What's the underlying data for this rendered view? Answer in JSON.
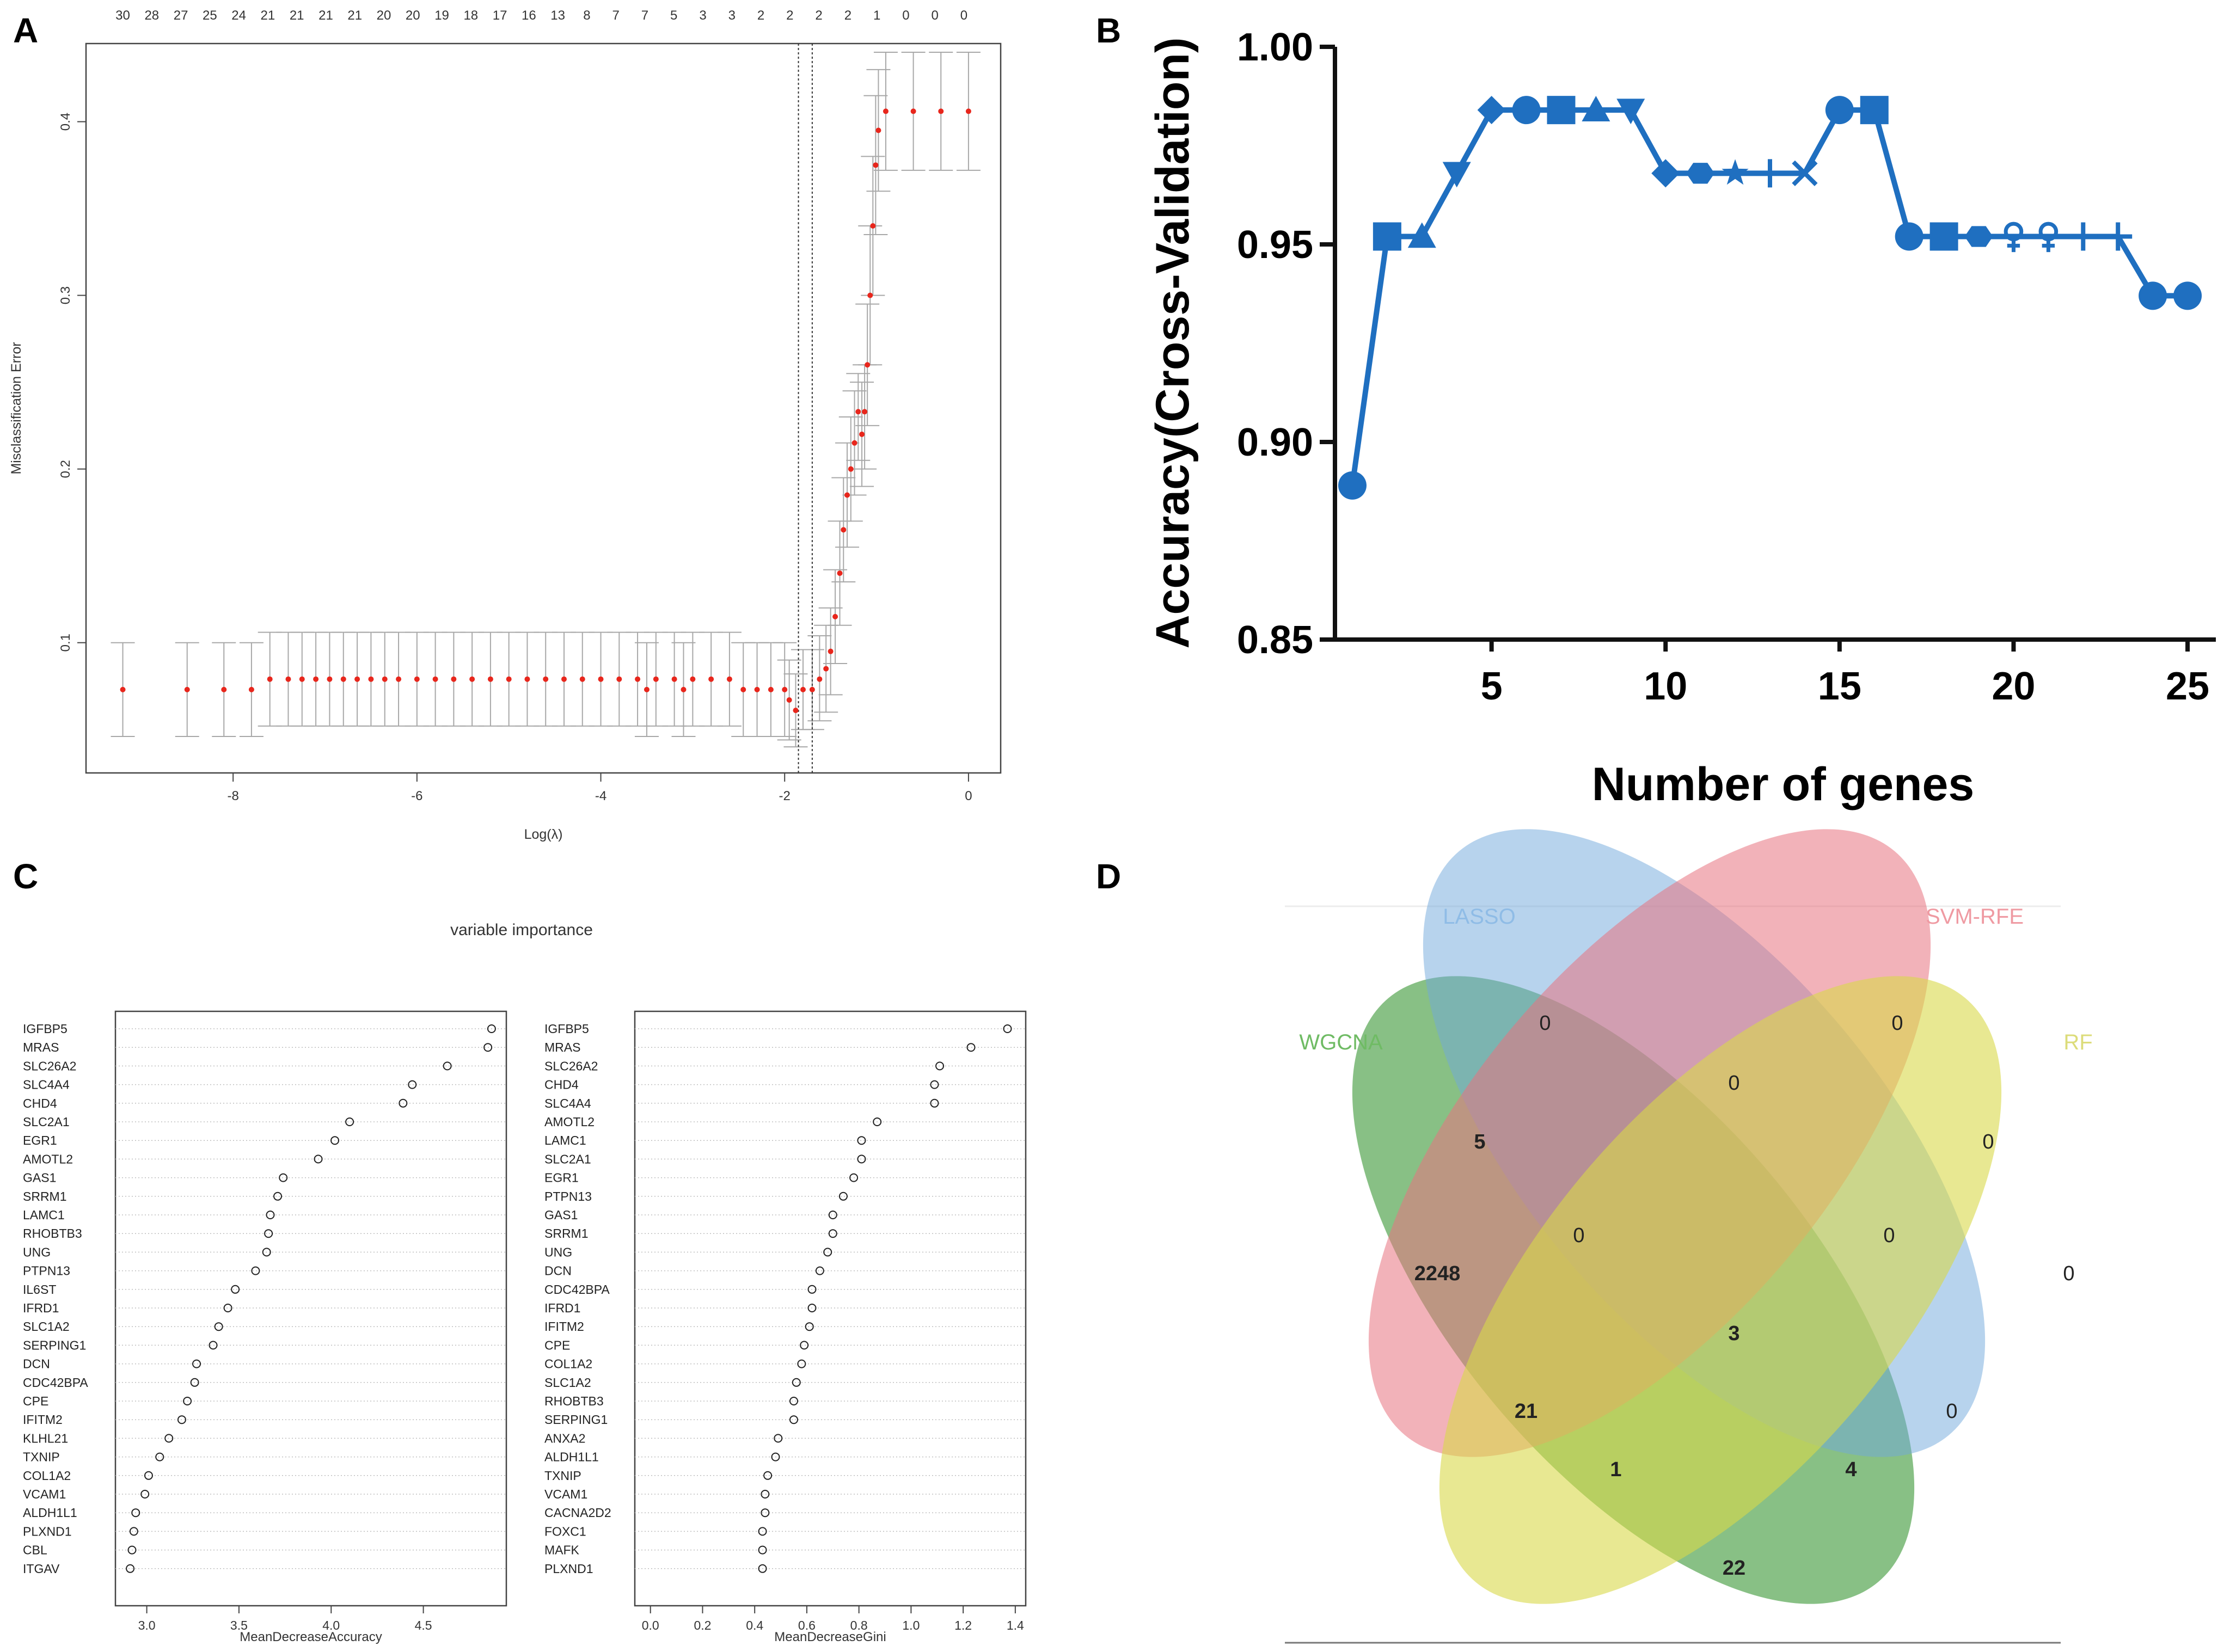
{
  "panel_labels": [
    "A",
    "B",
    "C",
    "D"
  ],
  "chart_data": [
    {
      "panel": "A",
      "type": "scatter",
      "title": "",
      "xlabel": "Log(λ)",
      "ylabel": "Misclassification Error",
      "xlim": [
        -9.6,
        0.35
      ],
      "ylim": [
        0.025,
        0.445
      ],
      "xticks": [
        -8,
        -6,
        -4,
        -2,
        0
      ],
      "xtick_labels": [
        "-8",
        "-6",
        "-4",
        "-2",
        "0"
      ],
      "yticks": [
        0.1,
        0.2,
        0.3,
        0.4
      ],
      "ytick_labels": [
        "0.1",
        "0.2",
        "0.3",
        "0.4"
      ],
      "top_axis_labels": [
        "30",
        "28",
        "27",
        "25",
        "24",
        "21",
        "21",
        "21",
        "21",
        "20",
        "20",
        "19",
        "18",
        "17",
        "16",
        "13",
        "8",
        "7",
        "7",
        "5",
        "3",
        "3",
        "2",
        "2",
        "2",
        "2",
        "1",
        "0",
        "0",
        "0"
      ],
      "vlines_x": [
        -1.85,
        -1.7
      ],
      "colors": {
        "point": "#e8261c",
        "errorbar": "#a8a8a8"
      },
      "points": [
        {
          "x": -9.2,
          "y": 0.073,
          "lo": 0.046,
          "hi": 0.1
        },
        {
          "x": -8.5,
          "y": 0.073,
          "lo": 0.046,
          "hi": 0.1
        },
        {
          "x": -8.1,
          "y": 0.073,
          "lo": 0.046,
          "hi": 0.1
        },
        {
          "x": -7.8,
          "y": 0.073,
          "lo": 0.046,
          "hi": 0.1
        },
        {
          "x": -7.6,
          "y": 0.079,
          "lo": 0.052,
          "hi": 0.106
        },
        {
          "x": -7.4,
          "y": 0.079,
          "lo": 0.052,
          "hi": 0.106
        },
        {
          "x": -7.25,
          "y": 0.079,
          "lo": 0.052,
          "hi": 0.106
        },
        {
          "x": -7.1,
          "y": 0.079,
          "lo": 0.052,
          "hi": 0.106
        },
        {
          "x": -6.95,
          "y": 0.079,
          "lo": 0.052,
          "hi": 0.106
        },
        {
          "x": -6.8,
          "y": 0.079,
          "lo": 0.052,
          "hi": 0.106
        },
        {
          "x": -6.65,
          "y": 0.079,
          "lo": 0.052,
          "hi": 0.106
        },
        {
          "x": -6.5,
          "y": 0.079,
          "lo": 0.052,
          "hi": 0.106
        },
        {
          "x": -6.35,
          "y": 0.079,
          "lo": 0.052,
          "hi": 0.106
        },
        {
          "x": -6.2,
          "y": 0.079,
          "lo": 0.052,
          "hi": 0.106
        },
        {
          "x": -6.0,
          "y": 0.079,
          "lo": 0.052,
          "hi": 0.106
        },
        {
          "x": -5.8,
          "y": 0.079,
          "lo": 0.052,
          "hi": 0.106
        },
        {
          "x": -5.6,
          "y": 0.079,
          "lo": 0.052,
          "hi": 0.106
        },
        {
          "x": -5.4,
          "y": 0.079,
          "lo": 0.052,
          "hi": 0.106
        },
        {
          "x": -5.2,
          "y": 0.079,
          "lo": 0.052,
          "hi": 0.106
        },
        {
          "x": -5.0,
          "y": 0.079,
          "lo": 0.052,
          "hi": 0.106
        },
        {
          "x": -4.8,
          "y": 0.079,
          "lo": 0.052,
          "hi": 0.106
        },
        {
          "x": -4.6,
          "y": 0.079,
          "lo": 0.052,
          "hi": 0.106
        },
        {
          "x": -4.4,
          "y": 0.079,
          "lo": 0.052,
          "hi": 0.106
        },
        {
          "x": -4.2,
          "y": 0.079,
          "lo": 0.052,
          "hi": 0.106
        },
        {
          "x": -4.0,
          "y": 0.079,
          "lo": 0.052,
          "hi": 0.106
        },
        {
          "x": -3.8,
          "y": 0.079,
          "lo": 0.052,
          "hi": 0.106
        },
        {
          "x": -3.6,
          "y": 0.079,
          "lo": 0.052,
          "hi": 0.106
        },
        {
          "x": -3.5,
          "y": 0.073,
          "lo": 0.046,
          "hi": 0.1
        },
        {
          "x": -3.4,
          "y": 0.079,
          "lo": 0.052,
          "hi": 0.106
        },
        {
          "x": -3.2,
          "y": 0.079,
          "lo": 0.052,
          "hi": 0.106
        },
        {
          "x": -3.1,
          "y": 0.073,
          "lo": 0.046,
          "hi": 0.1
        },
        {
          "x": -3.0,
          "y": 0.079,
          "lo": 0.052,
          "hi": 0.106
        },
        {
          "x": -2.8,
          "y": 0.079,
          "lo": 0.052,
          "hi": 0.106
        },
        {
          "x": -2.6,
          "y": 0.079,
          "lo": 0.052,
          "hi": 0.106
        },
        {
          "x": -2.45,
          "y": 0.073,
          "lo": 0.046,
          "hi": 0.1
        },
        {
          "x": -2.3,
          "y": 0.073,
          "lo": 0.046,
          "hi": 0.1
        },
        {
          "x": -2.15,
          "y": 0.073,
          "lo": 0.046,
          "hi": 0.1
        },
        {
          "x": -2.0,
          "y": 0.073,
          "lo": 0.046,
          "hi": 0.1
        },
        {
          "x": -1.95,
          "y": 0.067,
          "lo": 0.044,
          "hi": 0.09
        },
        {
          "x": -1.88,
          "y": 0.061,
          "lo": 0.04,
          "hi": 0.082
        },
        {
          "x": -1.8,
          "y": 0.073,
          "lo": 0.05,
          "hi": 0.096
        },
        {
          "x": -1.7,
          "y": 0.073,
          "lo": 0.05,
          "hi": 0.096
        },
        {
          "x": -1.62,
          "y": 0.079,
          "lo": 0.055,
          "hi": 0.104
        },
        {
          "x": -1.55,
          "y": 0.085,
          "lo": 0.06,
          "hi": 0.11
        },
        {
          "x": -1.5,
          "y": 0.095,
          "lo": 0.07,
          "hi": 0.12
        },
        {
          "x": -1.45,
          "y": 0.115,
          "lo": 0.088,
          "hi": 0.142
        },
        {
          "x": -1.4,
          "y": 0.14,
          "lo": 0.11,
          "hi": 0.17
        },
        {
          "x": -1.36,
          "y": 0.165,
          "lo": 0.135,
          "hi": 0.195
        },
        {
          "x": -1.32,
          "y": 0.185,
          "lo": 0.155,
          "hi": 0.215
        },
        {
          "x": -1.28,
          "y": 0.2,
          "lo": 0.17,
          "hi": 0.23
        },
        {
          "x": -1.24,
          "y": 0.215,
          "lo": 0.185,
          "hi": 0.245
        },
        {
          "x": -1.2,
          "y": 0.233,
          "lo": 0.205,
          "hi": 0.255
        },
        {
          "x": -1.16,
          "y": 0.22,
          "lo": 0.19,
          "hi": 0.25
        },
        {
          "x": -1.13,
          "y": 0.233,
          "lo": 0.2,
          "hi": 0.26
        },
        {
          "x": -1.1,
          "y": 0.26,
          "lo": 0.225,
          "hi": 0.295
        },
        {
          "x": -1.07,
          "y": 0.3,
          "lo": 0.26,
          "hi": 0.34
        },
        {
          "x": -1.04,
          "y": 0.34,
          "lo": 0.3,
          "hi": 0.38
        },
        {
          "x": -1.01,
          "y": 0.375,
          "lo": 0.335,
          "hi": 0.415
        },
        {
          "x": -0.98,
          "y": 0.395,
          "lo": 0.36,
          "hi": 0.43
        },
        {
          "x": -0.9,
          "y": 0.406,
          "lo": 0.372,
          "hi": 0.44
        },
        {
          "x": -0.6,
          "y": 0.406,
          "lo": 0.372,
          "hi": 0.44
        },
        {
          "x": -0.3,
          "y": 0.406,
          "lo": 0.372,
          "hi": 0.44
        },
        {
          "x": 0.0,
          "y": 0.406,
          "lo": 0.372,
          "hi": 0.44
        }
      ]
    },
    {
      "panel": "B",
      "type": "line",
      "title": "",
      "xlabel": "Number of genes",
      "ylabel": "Accuracy(Cross-Validation)",
      "xlim": [
        0.5,
        25.5
      ],
      "ylim": [
        0.85,
        1.0
      ],
      "xticks": [
        5,
        10,
        15,
        20,
        25
      ],
      "xtick_labels": [
        "5",
        "10",
        "15",
        "20",
        "25"
      ],
      "yticks": [
        0.85,
        0.9,
        0.95,
        1.0
      ],
      "ytick_labels": [
        "0.85",
        "0.90",
        "0.95",
        "1.00"
      ],
      "color": "#1f6fc0",
      "x": [
        1,
        2,
        3,
        4,
        5,
        6,
        7,
        8,
        9,
        10,
        11,
        12,
        13,
        14,
        15,
        16,
        17,
        18,
        19,
        20,
        21,
        22,
        23,
        24,
        25
      ],
      "y": [
        0.889,
        0.952,
        0.952,
        0.968,
        0.984,
        0.984,
        0.984,
        0.984,
        0.984,
        0.968,
        0.968,
        0.968,
        0.968,
        0.968,
        0.984,
        0.984,
        0.952,
        0.952,
        0.952,
        0.952,
        0.952,
        0.952,
        0.952,
        0.937,
        0.937
      ],
      "markers": [
        "circle",
        "square",
        "triangle",
        "triangle-down",
        "diamond",
        "circle",
        "square",
        "triangle",
        "triangle-down",
        "diamond",
        "hexagon",
        "star",
        "plus",
        "x",
        "circle",
        "square",
        "circle",
        "square",
        "hexagon",
        "female",
        "female",
        "plus",
        "plus",
        "circle",
        "circle"
      ]
    },
    {
      "panel": "C",
      "type": "scatter",
      "title": "variable importance",
      "subplots": [
        {
          "xlabel": "MeanDecreaseAccuracy",
          "xlim": [
            2.83,
            4.95
          ],
          "xticks": [
            3.0,
            3.5,
            4.0,
            4.5
          ],
          "xtick_labels": [
            "3.0",
            "3.5",
            "4.0",
            "4.5"
          ],
          "genes": [
            "IGFBP5",
            "MRAS",
            "SLC26A2",
            "SLC4A4",
            "CHD4",
            "SLC2A1",
            "EGR1",
            "AMOTL2",
            "GAS1",
            "SRRM1",
            "LAMC1",
            "RHOBTB3",
            "UNG",
            "PTPN13",
            "IL6ST",
            "IFRD1",
            "SLC1A2",
            "SERPING1",
            "DCN",
            "CDC42BPA",
            "CPE",
            "IFITM2",
            "KLHL21",
            "TXNIP",
            "COL1A2",
            "VCAM1",
            "ALDH1L1",
            "PLXND1",
            "CBL",
            "ITGAV"
          ],
          "values": [
            4.87,
            4.85,
            4.63,
            4.44,
            4.39,
            4.1,
            4.02,
            3.93,
            3.74,
            3.71,
            3.67,
            3.66,
            3.65,
            3.59,
            3.48,
            3.44,
            3.39,
            3.36,
            3.27,
            3.26,
            3.22,
            3.19,
            3.12,
            3.07,
            3.01,
            2.99,
            2.94,
            2.93,
            2.92,
            2.91
          ]
        },
        {
          "xlabel": "MeanDecreaseGini",
          "xlim": [
            -0.06,
            1.44
          ],
          "xticks": [
            0.0,
            0.2,
            0.4,
            0.6,
            0.8,
            1.0,
            1.2,
            1.4
          ],
          "xtick_labels": [
            "0.0",
            "0.2",
            "0.4",
            "0.6",
            "0.8",
            "1.0",
            "1.2",
            "1.4"
          ],
          "genes": [
            "IGFBP5",
            "MRAS",
            "SLC26A2",
            "CHD4",
            "SLC4A4",
            "AMOTL2",
            "LAMC1",
            "SLC2A1",
            "EGR1",
            "PTPN13",
            "GAS1",
            "SRRM1",
            "UNG",
            "DCN",
            "CDC42BPA",
            "IFRD1",
            "IFITM2",
            "CPE",
            "COL1A2",
            "SLC1A2",
            "RHOBTB3",
            "SERPING1",
            "ANXA2",
            "ALDH1L1",
            "TXNIP",
            "VCAM1",
            "CACNA2D2",
            "FOXC1",
            "MAFK",
            "PLXND1"
          ],
          "values": [
            1.37,
            1.23,
            1.11,
            1.09,
            1.09,
            0.87,
            0.81,
            0.81,
            0.78,
            0.74,
            0.7,
            0.7,
            0.68,
            0.65,
            0.62,
            0.62,
            0.61,
            0.59,
            0.58,
            0.56,
            0.55,
            0.55,
            0.49,
            0.48,
            0.45,
            0.44,
            0.44,
            0.43,
            0.43,
            0.43
          ]
        }
      ]
    },
    {
      "panel": "D",
      "type": "venn",
      "sets": [
        {
          "name": "LASSO",
          "color": "#6fa8dc"
        },
        {
          "name": "SVM-RFE",
          "color": "#e8737f"
        },
        {
          "name": "WGCNA",
          "color": "#3f9a3a"
        },
        {
          "name": "RF",
          "color": "#d8d84a"
        }
      ],
      "region_counts": [
        {
          "region": "LASSO only",
          "count": "0"
        },
        {
          "region": "SVM-RFE only",
          "count": "0"
        },
        {
          "region": "LASSO∩SVM-RFE",
          "count": "0"
        },
        {
          "region": "WGCNA∩LASSO",
          "count": "5"
        },
        {
          "region": "SVM-RFE∩RF",
          "count": "0"
        },
        {
          "region": "WGCNA∩LASSO∩SVM-RFE",
          "count": "0"
        },
        {
          "region": "LASSO∩SVM-RFE∩RF",
          "count": "0"
        },
        {
          "region": "WGCNA only",
          "count": "2248"
        },
        {
          "region": "RF only",
          "count": "0"
        },
        {
          "region": "All four",
          "count": "3"
        },
        {
          "region": "WGCNA∩SVM-RFE",
          "count": "21"
        },
        {
          "region": "LASSO∩RF",
          "count": "0"
        },
        {
          "region": "WGCNA∩SVM-RFE∩RF",
          "count": "1"
        },
        {
          "region": "WGCNA∩LASSO∩RF",
          "count": "4"
        },
        {
          "region": "WGCNA∩RF",
          "count": "22"
        }
      ]
    }
  ]
}
